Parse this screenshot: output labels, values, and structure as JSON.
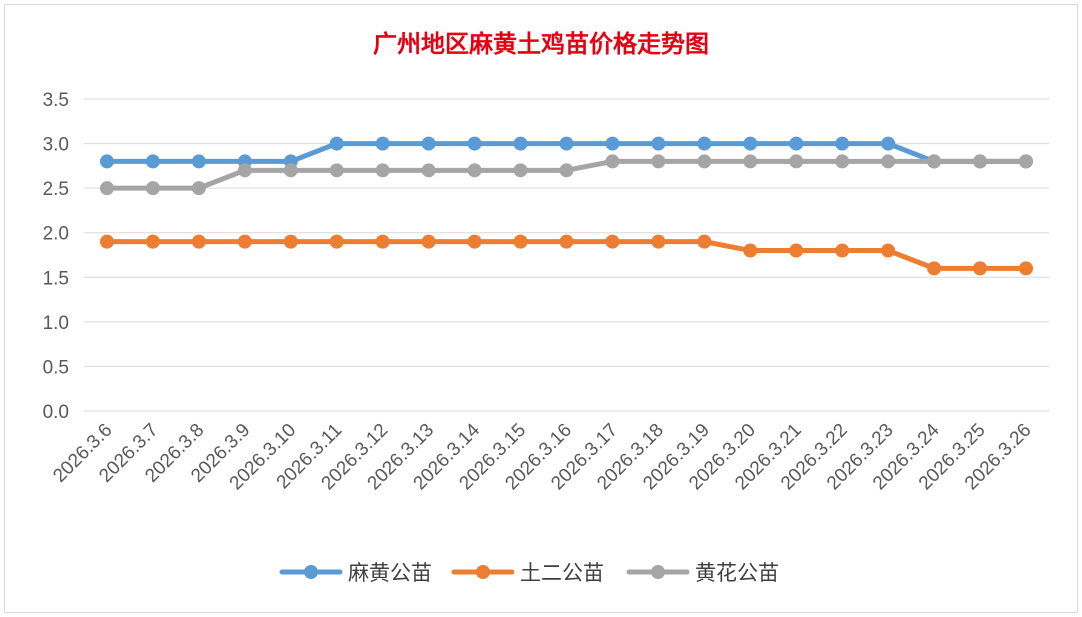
{
  "chart_data": {
    "type": "line",
    "title": "广州地区麻黄土鸡苗价格走势图",
    "xlabel": "",
    "ylabel": "",
    "ylim": [
      0,
      3.5
    ],
    "yticks": [
      "0.0",
      "0.5",
      "1.0",
      "1.5",
      "2.0",
      "2.5",
      "3.0",
      "3.5"
    ],
    "grid": true,
    "legend_position": "bottom",
    "categories": [
      "2026.3.6",
      "2026.3.7",
      "2026.3.8",
      "2026.3.9",
      "2026.3.10",
      "2026.3.11",
      "2026.3.12",
      "2026.3.13",
      "2026.3.14",
      "2026.3.15",
      "2026.3.16",
      "2026.3.17",
      "2026.3.18",
      "2026.3.19",
      "2026.3.20",
      "2026.3.21",
      "2026.3.22",
      "2026.3.23",
      "2026.3.24",
      "2026.3.25",
      "2026.3.26"
    ],
    "series": [
      {
        "name": "麻黄公苗",
        "color": "#5b9bd5",
        "values": [
          2.8,
          2.8,
          2.8,
          2.8,
          2.8,
          3.0,
          3.0,
          3.0,
          3.0,
          3.0,
          3.0,
          3.0,
          3.0,
          3.0,
          3.0,
          3.0,
          3.0,
          3.0,
          2.8,
          2.8,
          2.8
        ]
      },
      {
        "name": "土二公苗",
        "color": "#ed7d31",
        "values": [
          1.9,
          1.9,
          1.9,
          1.9,
          1.9,
          1.9,
          1.9,
          1.9,
          1.9,
          1.9,
          1.9,
          1.9,
          1.9,
          1.9,
          1.8,
          1.8,
          1.8,
          1.8,
          1.6,
          1.6,
          1.6
        ]
      },
      {
        "name": "黄花公苗",
        "color": "#a5a5a5",
        "values": [
          2.5,
          2.5,
          2.5,
          2.7,
          2.7,
          2.7,
          2.7,
          2.7,
          2.7,
          2.7,
          2.7,
          2.8,
          2.8,
          2.8,
          2.8,
          2.8,
          2.8,
          2.8,
          2.8,
          2.8,
          2.8
        ]
      }
    ]
  }
}
